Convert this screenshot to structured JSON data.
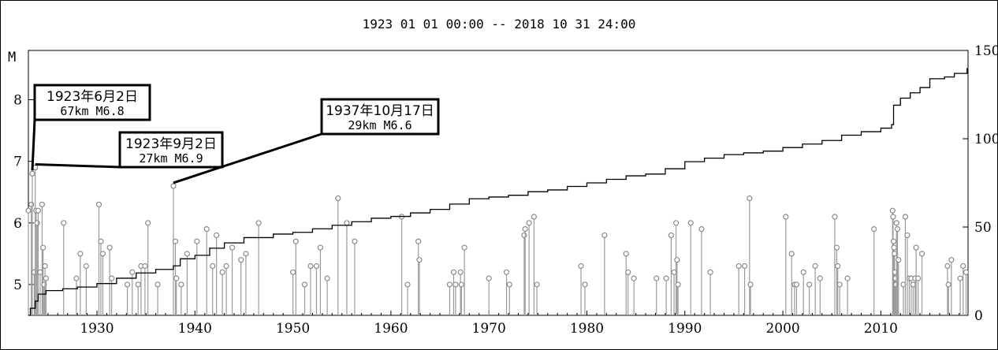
{
  "chart_data": {
    "type": "scatter",
    "title": "1923 01 01 00:00 -- 2018 10 31 24:00",
    "ylabel": "M",
    "xlim": [
      1923,
      2018.9
    ],
    "ylim": [
      4.5,
      8.8
    ],
    "y2lim": [
      0,
      150
    ],
    "x_ticks": [
      "1930",
      "1940",
      "1950",
      "1960",
      "1970",
      "1980",
      "1990",
      "2000",
      "2010"
    ],
    "y_ticks": [
      "5",
      "6",
      "7",
      "8"
    ],
    "y2_ticks": [
      "0",
      "50",
      "100",
      "150"
    ],
    "grid": false,
    "series": [
      {
        "points": [
          [
            1923.0,
            6.2
          ],
          [
            1923.3,
            6.3
          ],
          [
            1923.4,
            6.8
          ],
          [
            1923.6,
            5.2
          ],
          [
            1923.7,
            6.9
          ],
          [
            1923.8,
            6.2
          ],
          [
            1923.9,
            6.0
          ],
          [
            1924.0,
            6.2
          ],
          [
            1924.2,
            5.2
          ],
          [
            1924.4,
            6.3
          ],
          [
            1924.5,
            5.6
          ],
          [
            1924.6,
            5.0
          ],
          [
            1924.7,
            5.3
          ],
          [
            1924.8,
            5.1
          ],
          [
            1926.6,
            6.0
          ],
          [
            1927.9,
            5.1
          ],
          [
            1928.3,
            5.5
          ],
          [
            1928.9,
            5.3
          ],
          [
            1930.2,
            6.3
          ],
          [
            1930.4,
            5.7
          ],
          [
            1930.6,
            5.5
          ],
          [
            1931.3,
            5.6
          ],
          [
            1931.5,
            5.1
          ],
          [
            1933.1,
            5.0
          ],
          [
            1933.6,
            5.2
          ],
          [
            1934.2,
            5.0
          ],
          [
            1934.5,
            5.3
          ],
          [
            1934.9,
            5.3
          ],
          [
            1935.2,
            6.0
          ],
          [
            1936.2,
            5.0
          ],
          [
            1937.8,
            6.6
          ],
          [
            1938.0,
            5.7
          ],
          [
            1938.1,
            5.1
          ],
          [
            1938.6,
            5.0
          ],
          [
            1939.2,
            5.5
          ],
          [
            1940.2,
            5.7
          ],
          [
            1941.2,
            5.9
          ],
          [
            1941.8,
            5.3
          ],
          [
            1942.2,
            5.8
          ],
          [
            1942.8,
            5.2
          ],
          [
            1943.2,
            5.3
          ],
          [
            1943.8,
            5.6
          ],
          [
            1944.7,
            5.4
          ],
          [
            1945.2,
            5.5
          ],
          [
            1946.5,
            6.0
          ],
          [
            1950.0,
            5.2
          ],
          [
            1950.3,
            5.7
          ],
          [
            1951.2,
            5.0
          ],
          [
            1951.8,
            5.3
          ],
          [
            1952.4,
            5.3
          ],
          [
            1952.8,
            5.6
          ],
          [
            1953.5,
            5.1
          ],
          [
            1954.6,
            6.4
          ],
          [
            1955.5,
            6.0
          ],
          [
            1956.3,
            5.7
          ],
          [
            1961.1,
            6.1
          ],
          [
            1961.7,
            5.0
          ],
          [
            1962.8,
            5.7
          ],
          [
            1962.9,
            5.4
          ],
          [
            1966.0,
            5.0
          ],
          [
            1966.4,
            5.2
          ],
          [
            1966.6,
            5.0
          ],
          [
            1967.1,
            5.2
          ],
          [
            1967.2,
            5.0
          ],
          [
            1967.5,
            5.6
          ],
          [
            1970.0,
            5.1
          ],
          [
            1971.8,
            5.2
          ],
          [
            1972.1,
            5.0
          ],
          [
            1973.6,
            5.8
          ],
          [
            1973.7,
            5.9
          ],
          [
            1974.1,
            6.0
          ],
          [
            1974.6,
            6.1
          ],
          [
            1974.9,
            5.0
          ],
          [
            1979.4,
            5.3
          ],
          [
            1979.8,
            5.0
          ],
          [
            1981.8,
            5.8
          ],
          [
            1984.0,
            5.5
          ],
          [
            1984.2,
            5.2
          ],
          [
            1984.8,
            5.1
          ],
          [
            1987.1,
            5.1
          ],
          [
            1988.1,
            5.1
          ],
          [
            1988.6,
            5.8
          ],
          [
            1988.9,
            5.2
          ],
          [
            1989.1,
            6.0
          ],
          [
            1989.2,
            5.4
          ],
          [
            1989.3,
            5.0
          ],
          [
            1990.6,
            6.0
          ],
          [
            1991.7,
            5.9
          ],
          [
            1992.6,
            5.2
          ],
          [
            1995.5,
            5.3
          ],
          [
            1996.1,
            5.3
          ],
          [
            1996.6,
            6.4
          ],
          [
            1996.7,
            5.0
          ],
          [
            2000.3,
            6.1
          ],
          [
            2000.9,
            5.5
          ],
          [
            2001.2,
            5.0
          ],
          [
            2001.4,
            5.0
          ],
          [
            2002.1,
            5.2
          ],
          [
            2002.7,
            5.0
          ],
          [
            2003.3,
            5.3
          ],
          [
            2003.8,
            5.1
          ],
          [
            2005.3,
            6.1
          ],
          [
            2005.5,
            5.6
          ],
          [
            2005.6,
            5.3
          ],
          [
            2005.8,
            5.0
          ],
          [
            2006.6,
            5.1
          ],
          [
            2009.3,
            5.9
          ],
          [
            2011.2,
            6.2
          ],
          [
            2011.25,
            6.1
          ],
          [
            2011.3,
            5.7
          ],
          [
            2011.35,
            5.6
          ],
          [
            2011.4,
            5.5
          ],
          [
            2011.45,
            5.2
          ],
          [
            2011.5,
            5.1
          ],
          [
            2011.55,
            5.0
          ],
          [
            2011.6,
            6.0
          ],
          [
            2011.7,
            5.9
          ],
          [
            2011.8,
            5.4
          ],
          [
            2012.3,
            5.0
          ],
          [
            2012.5,
            6.1
          ],
          [
            2012.7,
            5.8
          ],
          [
            2012.9,
            5.1
          ],
          [
            2013.1,
            5.1
          ],
          [
            2013.3,
            5.0
          ],
          [
            2013.5,
            5.1
          ],
          [
            2013.6,
            5.6
          ],
          [
            2013.8,
            5.1
          ],
          [
            2014.2,
            5.5
          ],
          [
            2016.8,
            5.3
          ],
          [
            2016.9,
            5.0
          ],
          [
            2017.2,
            5.4
          ],
          [
            2018.1,
            5.1
          ],
          [
            2018.4,
            5.3
          ],
          [
            2018.7,
            5.2
          ]
        ]
      },
      {
        "name": "",
        "type": "cumulative-step",
        "points": [
          [
            1923.0,
            0
          ],
          [
            1923.2,
            4
          ],
          [
            1923.7,
            8
          ],
          [
            1924.0,
            12
          ],
          [
            1924.8,
            14
          ],
          [
            1926.5,
            15
          ],
          [
            1928.0,
            16
          ],
          [
            1930.0,
            18
          ],
          [
            1932.0,
            21
          ],
          [
            1934.0,
            24
          ],
          [
            1936.0,
            26
          ],
          [
            1937.8,
            28
          ],
          [
            1938.5,
            32
          ],
          [
            1940.0,
            34
          ],
          [
            1941.5,
            38
          ],
          [
            1943.0,
            41
          ],
          [
            1945.0,
            44
          ],
          [
            1948.0,
            46
          ],
          [
            1950.0,
            47
          ],
          [
            1952.0,
            49
          ],
          [
            1954.0,
            51
          ],
          [
            1956.0,
            53
          ],
          [
            1958.0,
            55
          ],
          [
            1960.0,
            56
          ],
          [
            1962.0,
            58
          ],
          [
            1964.0,
            60
          ],
          [
            1966.0,
            63
          ],
          [
            1968.0,
            66
          ],
          [
            1970.0,
            67
          ],
          [
            1972.0,
            68
          ],
          [
            1974.0,
            70
          ],
          [
            1976.0,
            71
          ],
          [
            1978.0,
            73
          ],
          [
            1980.0,
            75
          ],
          [
            1982.0,
            77
          ],
          [
            1984.0,
            79
          ],
          [
            1986.0,
            80
          ],
          [
            1988.0,
            83
          ],
          [
            1990.0,
            87
          ],
          [
            1992.0,
            89
          ],
          [
            1994.0,
            91
          ],
          [
            1996.0,
            92
          ],
          [
            1998.0,
            93
          ],
          [
            2000.0,
            95
          ],
          [
            2002.0,
            97
          ],
          [
            2004.0,
            99
          ],
          [
            2006.0,
            102
          ],
          [
            2008.0,
            104
          ],
          [
            2010.0,
            106
          ],
          [
            2011.1,
            108
          ],
          [
            2011.3,
            119
          ],
          [
            2012.0,
            123
          ],
          [
            2013.0,
            126
          ],
          [
            2014.0,
            129
          ],
          [
            2015.0,
            134
          ],
          [
            2016.5,
            135
          ],
          [
            2017.5,
            137
          ],
          [
            2018.8,
            140
          ]
        ]
      }
    ],
    "annotations": [
      {
        "title": "1923年6月2日",
        "sub": "67km  M6.8",
        "x": 1923.4,
        "y": 6.8
      },
      {
        "title": "1923年9月2日",
        "sub": "27km  M6.9",
        "x": 1923.7,
        "y": 6.9
      },
      {
        "title": "1937年10月17日",
        "sub": "29km  M6.6",
        "x": 1937.8,
        "y": 6.6
      }
    ]
  }
}
